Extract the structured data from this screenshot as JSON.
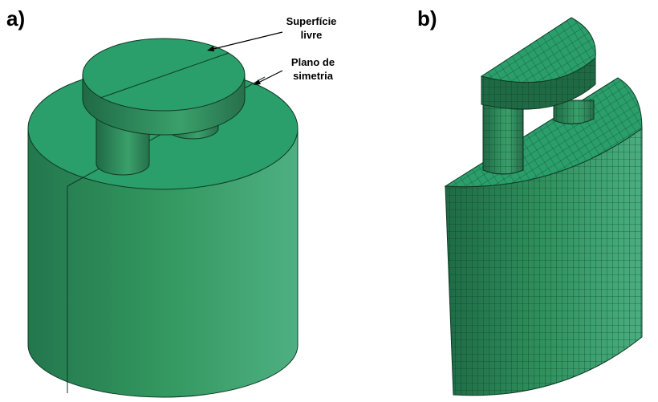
{
  "panels": [
    {
      "label": "a)",
      "annotations": [
        {
          "lines": [
            "Superfície",
            "livre"
          ]
        },
        {
          "lines": [
            "Plano de",
            "simetria"
          ]
        }
      ]
    },
    {
      "label": "b)"
    }
  ]
}
